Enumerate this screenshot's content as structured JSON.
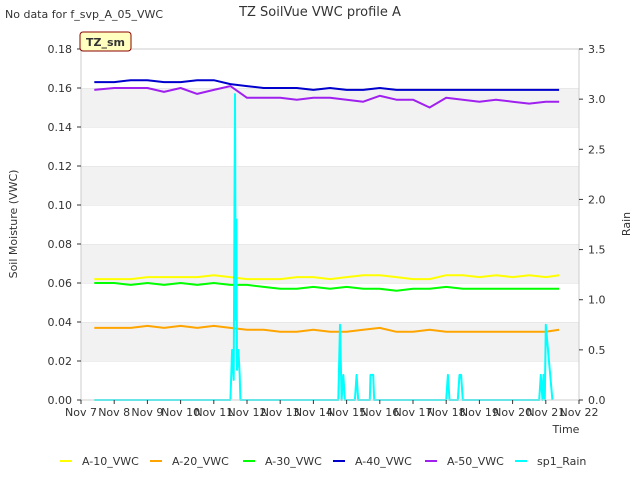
{
  "chart_data": {
    "type": "line",
    "title": "TZ SoilVue VWC profile A",
    "no_data_note": "No data for f_svp_A_05_VWC",
    "site_tag": "TZ_sm",
    "xlabel": "Time",
    "ylabel_left": "Soil Moisture (VWC)",
    "ylabel_right": "Rain",
    "x_range": [
      7,
      22
    ],
    "x_ticks": [
      {
        "value": 7,
        "label": "Nov 7"
      },
      {
        "value": 8,
        "label": "Nov 8"
      },
      {
        "value": 9,
        "label": "Nov 9"
      },
      {
        "value": 10,
        "label": "Nov 10"
      },
      {
        "value": 11,
        "label": "Nov 11"
      },
      {
        "value": 12,
        "label": "Nov 12"
      },
      {
        "value": 13,
        "label": "Nov 13"
      },
      {
        "value": 14,
        "label": "Nov 14"
      },
      {
        "value": 15,
        "label": "Nov 15"
      },
      {
        "value": 16,
        "label": "Nov 16"
      },
      {
        "value": 17,
        "label": "Nov 17"
      },
      {
        "value": 18,
        "label": "Nov 18"
      },
      {
        "value": 19,
        "label": "Nov 19"
      },
      {
        "value": 20,
        "label": "Nov 20"
      },
      {
        "value": 21,
        "label": "Nov 21"
      },
      {
        "value": 22,
        "label": "Nov 22"
      }
    ],
    "ylim_left": [
      0,
      0.18
    ],
    "y_ticks_left": [
      {
        "value": 0,
        "label": "0.00"
      },
      {
        "value": 0.02,
        "label": "0.02"
      },
      {
        "value": 0.04,
        "label": "0.04"
      },
      {
        "value": 0.06,
        "label": "0.06"
      },
      {
        "value": 0.08,
        "label": "0.08"
      },
      {
        "value": 0.1,
        "label": "0.10"
      },
      {
        "value": 0.12,
        "label": "0.12"
      },
      {
        "value": 0.14,
        "label": "0.14"
      },
      {
        "value": 0.16,
        "label": "0.16"
      },
      {
        "value": 0.18,
        "label": "0.18"
      }
    ],
    "ylim_right": [
      0,
      3.5
    ],
    "y_ticks_right": [
      {
        "value": 0,
        "label": "0.0"
      },
      {
        "value": 0.5,
        "label": "0.5"
      },
      {
        "value": 1,
        "label": "1.0"
      },
      {
        "value": 1.5,
        "label": "1.5"
      },
      {
        "value": 2,
        "label": "2.0"
      },
      {
        "value": 2.5,
        "label": "2.5"
      },
      {
        "value": 3,
        "label": "3.0"
      },
      {
        "value": 3.5,
        "label": "3.5"
      }
    ],
    "grid": "horizontal bands",
    "legend_placement": "bottom",
    "series": [
      {
        "name": "A-10_VWC",
        "color": "#ffff00",
        "axis": "left",
        "x": [
          7.4,
          8,
          8.5,
          9,
          9.5,
          10,
          10.5,
          11,
          11.5,
          12,
          12.5,
          13,
          13.5,
          14,
          14.5,
          15,
          15.5,
          16,
          16.5,
          17,
          17.5,
          18,
          18.5,
          19,
          19.5,
          20,
          20.5,
          21,
          21.4
        ],
        "y": [
          0.062,
          0.062,
          0.062,
          0.063,
          0.063,
          0.063,
          0.063,
          0.064,
          0.063,
          0.062,
          0.062,
          0.062,
          0.063,
          0.063,
          0.062,
          0.063,
          0.064,
          0.064,
          0.063,
          0.062,
          0.062,
          0.064,
          0.064,
          0.063,
          0.064,
          0.063,
          0.064,
          0.063,
          0.064
        ]
      },
      {
        "name": "A-20_VWC",
        "color": "#ffa500",
        "axis": "left",
        "x": [
          7.4,
          8,
          8.5,
          9,
          9.5,
          10,
          10.5,
          11,
          11.5,
          12,
          12.5,
          13,
          13.5,
          14,
          14.5,
          15,
          15.5,
          16,
          16.5,
          17,
          17.5,
          18,
          18.5,
          19,
          19.5,
          20,
          20.5,
          21,
          21.4
        ],
        "y": [
          0.037,
          0.037,
          0.037,
          0.038,
          0.037,
          0.038,
          0.037,
          0.038,
          0.037,
          0.036,
          0.036,
          0.035,
          0.035,
          0.036,
          0.035,
          0.035,
          0.036,
          0.037,
          0.035,
          0.035,
          0.036,
          0.035,
          0.035,
          0.035,
          0.035,
          0.035,
          0.035,
          0.035,
          0.036
        ]
      },
      {
        "name": "A-30_VWC",
        "color": "#00ff00",
        "axis": "left",
        "x": [
          7.4,
          8,
          8.5,
          9,
          9.5,
          10,
          10.5,
          11,
          11.5,
          12,
          12.5,
          13,
          13.5,
          14,
          14.5,
          15,
          15.5,
          16,
          16.5,
          17,
          17.5,
          18,
          18.5,
          19,
          19.5,
          20,
          20.5,
          21,
          21.4
        ],
        "y": [
          0.06,
          0.06,
          0.059,
          0.06,
          0.059,
          0.06,
          0.059,
          0.06,
          0.059,
          0.059,
          0.058,
          0.057,
          0.057,
          0.058,
          0.057,
          0.058,
          0.057,
          0.057,
          0.056,
          0.057,
          0.057,
          0.058,
          0.057,
          0.057,
          0.057,
          0.057,
          0.057,
          0.057,
          0.057
        ]
      },
      {
        "name": "A-40_VWC",
        "color": "#0000cd",
        "axis": "left",
        "x": [
          7.4,
          8,
          8.5,
          9,
          9.5,
          10,
          10.5,
          11,
          11.5,
          12,
          12.5,
          13,
          13.5,
          14,
          14.5,
          15,
          15.5,
          16,
          16.5,
          17,
          17.5,
          18,
          18.5,
          19,
          19.5,
          20,
          20.5,
          21,
          21.4
        ],
        "y": [
          0.163,
          0.163,
          0.164,
          0.164,
          0.163,
          0.163,
          0.164,
          0.164,
          0.162,
          0.161,
          0.16,
          0.16,
          0.16,
          0.159,
          0.16,
          0.159,
          0.159,
          0.16,
          0.159,
          0.159,
          0.159,
          0.159,
          0.159,
          0.159,
          0.159,
          0.159,
          0.159,
          0.159,
          0.159
        ]
      },
      {
        "name": "A-50_VWC",
        "color": "#a020f0",
        "axis": "left",
        "x": [
          7.4,
          8,
          8.5,
          9,
          9.5,
          10,
          10.5,
          11,
          11.5,
          12,
          12.5,
          13,
          13.5,
          14,
          14.5,
          15,
          15.5,
          16,
          16.5,
          17,
          17.5,
          18,
          18.5,
          19,
          19.5,
          20,
          20.5,
          21,
          21.4
        ],
        "y": [
          0.159,
          0.16,
          0.16,
          0.16,
          0.158,
          0.16,
          0.157,
          0.159,
          0.161,
          0.155,
          0.155,
          0.155,
          0.154,
          0.155,
          0.155,
          0.154,
          0.153,
          0.156,
          0.154,
          0.154,
          0.15,
          0.155,
          0.154,
          0.153,
          0.154,
          0.153,
          0.152,
          0.153,
          0.153
        ]
      },
      {
        "name": "sp1_Rain",
        "color": "#00ffff",
        "axis": "right",
        "x": [
          7.4,
          11.5,
          11.55,
          11.6,
          11.64,
          11.66,
          11.68,
          11.7,
          11.74,
          11.78,
          11.8,
          11.85,
          11.9,
          14.75,
          14.8,
          14.85,
          14.9,
          14.95,
          15.25,
          15.3,
          15.35,
          15.7,
          15.72,
          15.8,
          15.83,
          18.0,
          18.05,
          18.1,
          18.15,
          18.35,
          18.4,
          18.45,
          18.5,
          20.8,
          20.85,
          20.9,
          20.93,
          20.97,
          21.0,
          21.2
        ],
        "y": [
          0,
          0,
          0.5,
          0.2,
          3.05,
          0.8,
          1.8,
          0.3,
          0.5,
          0.25,
          0,
          0,
          0,
          0,
          0.75,
          0,
          0.25,
          0,
          0,
          0.25,
          0,
          0,
          0.25,
          0.25,
          0,
          0,
          0.25,
          0,
          0,
          0,
          0.25,
          0.25,
          0,
          0,
          0.25,
          0,
          0.25,
          0,
          0.75,
          0
        ]
      }
    ]
  }
}
